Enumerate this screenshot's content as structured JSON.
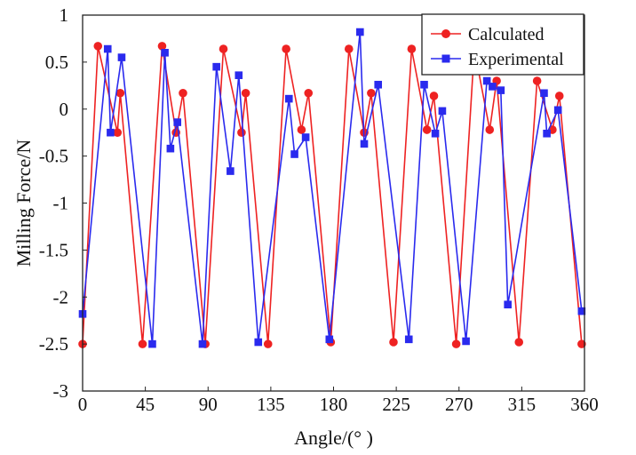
{
  "chart_data": {
    "type": "line",
    "title": "",
    "xlabel": "Angle/(° )",
    "ylabel": "Milling Force/N",
    "xlim": [
      0,
      360
    ],
    "ylim": [
      -3,
      1
    ],
    "xticks": [
      0,
      45,
      90,
      135,
      180,
      225,
      270,
      315,
      360
    ],
    "yticks": [
      1,
      0.5,
      0,
      -0.5,
      -1,
      -1.5,
      -2,
      -2.5,
      -3
    ],
    "xtick_labels": [
      "0",
      "45",
      "90",
      "135",
      "180",
      "225",
      "270",
      "315",
      "360"
    ],
    "ytick_labels": [
      "1",
      "0.5",
      "0",
      "-0.5",
      "-1",
      "-1.5",
      "-2",
      "-2.5",
      "-3"
    ],
    "grid": false,
    "legend_position": "top-right",
    "series": [
      {
        "name": "Calculated",
        "color": "#ee2222",
        "marker": "circle",
        "x": [
          0,
          11,
          25,
          27,
          43,
          57,
          67,
          72,
          88,
          101,
          114,
          117,
          133,
          146,
          157,
          162,
          178,
          191,
          202,
          207,
          223,
          236,
          247,
          252,
          268,
          281,
          292,
          297,
          313,
          326,
          337,
          342,
          358
        ],
        "y": [
          -2.5,
          0.67,
          -0.25,
          0.17,
          -2.5,
          0.67,
          -0.25,
          0.17,
          -2.5,
          0.64,
          -0.25,
          0.17,
          -2.5,
          0.64,
          -0.22,
          0.17,
          -2.48,
          0.64,
          -0.25,
          0.17,
          -2.48,
          0.64,
          -0.22,
          0.14,
          -2.5,
          0.64,
          -0.22,
          0.3,
          -2.48,
          0.3,
          -0.22,
          0.14,
          -2.5
        ]
      },
      {
        "name": "Experimental",
        "color": "#2a2aee",
        "marker": "square",
        "x": [
          0,
          18,
          20,
          28,
          50,
          59,
          63,
          68,
          86,
          96,
          106,
          112,
          126,
          148,
          152,
          160,
          177,
          199,
          202,
          212,
          234,
          245,
          253,
          258,
          275,
          290,
          294,
          300,
          305,
          331,
          333,
          341,
          358
        ],
        "y": [
          -2.18,
          0.64,
          -0.25,
          0.55,
          -2.5,
          0.6,
          -0.42,
          -0.14,
          -2.5,
          0.45,
          -0.66,
          0.36,
          -2.48,
          0.11,
          -0.48,
          -0.3,
          -2.45,
          0.82,
          -0.37,
          0.26,
          -2.45,
          0.26,
          -0.26,
          -0.02,
          -2.47,
          0.3,
          0.24,
          0.2,
          -2.08,
          0.17,
          -0.26,
          -0.01,
          -2.15
        ]
      }
    ]
  }
}
